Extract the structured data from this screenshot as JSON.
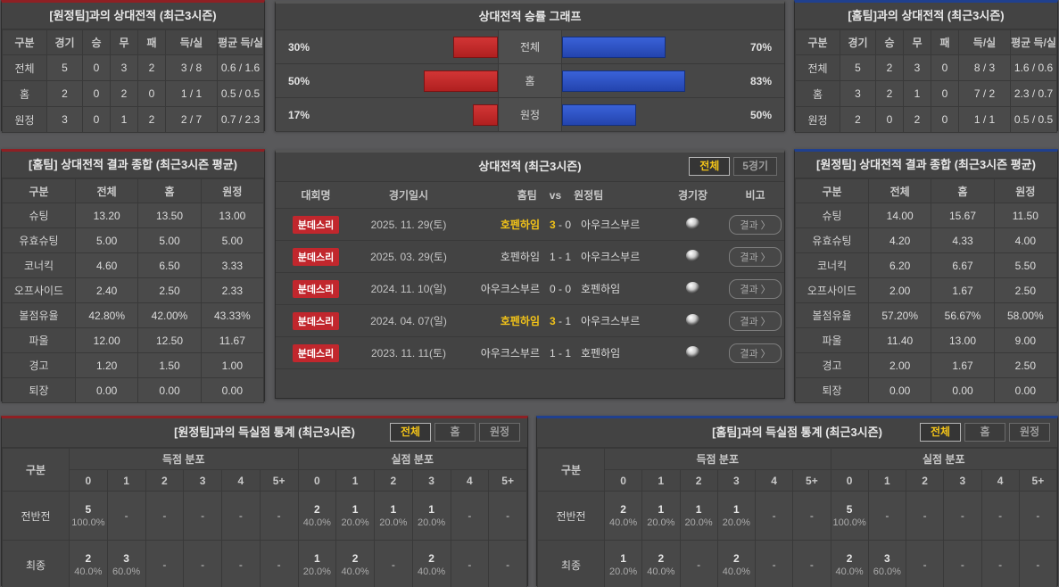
{
  "colors": {
    "red_bar": "#c1272d",
    "blue_bar": "#2b52c8",
    "yellow_highlight": "#f2c318",
    "red_accent": "#8e2024",
    "blue_accent": "#20408e"
  },
  "away_h2h": {
    "title": "[원정팀]과의 상대전적 (최근3시즌)",
    "headers": [
      "구분",
      "경기",
      "승",
      "무",
      "패",
      "득/실",
      "평균 득/실"
    ],
    "rows": [
      {
        "label": "전체",
        "values": [
          "5",
          "0",
          "3",
          "2",
          "3 / 8",
          "0.6 / 1.6"
        ]
      },
      {
        "label": "홈",
        "values": [
          "2",
          "0",
          "2",
          "0",
          "1 / 1",
          "0.5 / 0.5"
        ]
      },
      {
        "label": "원정",
        "values": [
          "3",
          "0",
          "1",
          "2",
          "2 / 7",
          "0.7 / 2.3"
        ]
      }
    ]
  },
  "home_h2h": {
    "title": "[홈팀]과의 상대전적 (최근3시즌)",
    "headers": [
      "구분",
      "경기",
      "승",
      "무",
      "패",
      "득/실",
      "평균 득/실"
    ],
    "rows": [
      {
        "label": "전체",
        "values": [
          "5",
          "2",
          "3",
          "0",
          "8 / 3",
          "1.6 / 0.6"
        ]
      },
      {
        "label": "홈",
        "values": [
          "3",
          "2",
          "1",
          "0",
          "7 / 2",
          "2.3 / 0.7"
        ]
      },
      {
        "label": "원정",
        "values": [
          "2",
          "0",
          "2",
          "0",
          "1 / 1",
          "0.5 / 0.5"
        ]
      }
    ]
  },
  "win_rate_chart": {
    "title": "상대전적 승률 그래프",
    "chart_data": {
      "type": "bar",
      "categories": [
        "전체",
        "홈",
        "원정"
      ],
      "series": [
        {
          "name": "away-red",
          "values": [
            30,
            50,
            17
          ]
        },
        {
          "name": "home-blue",
          "values": [
            70,
            83,
            50
          ]
        }
      ],
      "xlim": [
        0,
        100
      ],
      "unit": "%"
    },
    "rows": [
      {
        "label": "전체",
        "away_pct": "30%",
        "away_val": 30,
        "home_pct": "70%",
        "home_val": 70
      },
      {
        "label": "홈",
        "away_pct": "50%",
        "away_val": 50,
        "home_pct": "83%",
        "home_val": 83
      },
      {
        "label": "원정",
        "away_pct": "17%",
        "away_val": 17,
        "home_pct": "50%",
        "home_val": 50
      }
    ]
  },
  "home_summary": {
    "title": "[홈팀] 상대전적 결과 종합 (최근3시즌 평균)",
    "headers": [
      "구분",
      "전체",
      "홈",
      "원정"
    ],
    "rows": [
      {
        "label": "슈팅",
        "values": [
          "13.20",
          "13.50",
          "13.00"
        ]
      },
      {
        "label": "유효슈팅",
        "values": [
          "5.00",
          "5.00",
          "5.00"
        ]
      },
      {
        "label": "코너킥",
        "values": [
          "4.60",
          "6.50",
          "3.33"
        ]
      },
      {
        "label": "오프사이드",
        "values": [
          "2.40",
          "2.50",
          "2.33"
        ]
      },
      {
        "label": "볼점유율",
        "values": [
          "42.80%",
          "42.00%",
          "43.33%"
        ]
      },
      {
        "label": "파울",
        "values": [
          "12.00",
          "12.50",
          "11.67"
        ]
      },
      {
        "label": "경고",
        "values": [
          "1.20",
          "1.50",
          "1.00"
        ]
      },
      {
        "label": "퇴장",
        "values": [
          "0.00",
          "0.00",
          "0.00"
        ]
      }
    ]
  },
  "away_summary": {
    "title": "[원정팀] 상대전적 결과 종합 (최근3시즌 평균)",
    "headers": [
      "구분",
      "전체",
      "홈",
      "원정"
    ],
    "rows": [
      {
        "label": "슈팅",
        "values": [
          "14.00",
          "15.67",
          "11.50"
        ]
      },
      {
        "label": "유효슈팅",
        "values": [
          "4.20",
          "4.33",
          "4.00"
        ]
      },
      {
        "label": "코너킥",
        "values": [
          "6.20",
          "6.67",
          "5.50"
        ]
      },
      {
        "label": "오프사이드",
        "values": [
          "2.00",
          "1.67",
          "2.50"
        ]
      },
      {
        "label": "볼점유율",
        "values": [
          "57.20%",
          "56.67%",
          "58.00%"
        ]
      },
      {
        "label": "파울",
        "values": [
          "11.40",
          "13.00",
          "9.00"
        ]
      },
      {
        "label": "경고",
        "values": [
          "2.00",
          "1.67",
          "2.50"
        ]
      },
      {
        "label": "퇴장",
        "values": [
          "0.00",
          "0.00",
          "0.00"
        ]
      }
    ]
  },
  "match_list": {
    "title": "상대전적 (최근3시즌)",
    "tabs": [
      {
        "label": "전체",
        "active": true
      },
      {
        "label": "5경기",
        "active": false
      }
    ],
    "headers": {
      "league": "대회명",
      "date": "경기일시",
      "home": "홈팀",
      "vs": "vs",
      "away": "원정팀",
      "stadium": "경기장",
      "note": "비고"
    },
    "result_label": "결과 〉",
    "stadium_icon": "ball-icon",
    "rows": [
      {
        "league": "분데스리",
        "date": "2025. 11. 29(토)",
        "home": "호펜하임",
        "home_score": "3",
        "away_score": "0",
        "away": "아우크스부르",
        "winner": "home"
      },
      {
        "league": "분데스리",
        "date": "2025. 03. 29(토)",
        "home": "호펜하임",
        "home_score": "1",
        "away_score": "1",
        "away": "아우크스부르",
        "winner": "none"
      },
      {
        "league": "분데스리",
        "date": "2024. 11. 10(일)",
        "home": "아우크스부르",
        "home_score": "0",
        "away_score": "0",
        "away": "호펜하임",
        "winner": "none"
      },
      {
        "league": "분데스리",
        "date": "2024. 04. 07(일)",
        "home": "호펜하임",
        "home_score": "3",
        "away_score": "1",
        "away": "아우크스부르",
        "winner": "home"
      },
      {
        "league": "분데스리",
        "date": "2023. 11. 11(토)",
        "home": "아우크스부르",
        "home_score": "1",
        "away_score": "1",
        "away": "호펜하임",
        "winner": "none"
      }
    ]
  },
  "away_goals": {
    "title": "[원정팀]과의 득실점 통계 (최근3시즌)",
    "tabs": [
      {
        "label": "전체",
        "active": true
      },
      {
        "label": "홈",
        "active": false
      },
      {
        "label": "원정",
        "active": false
      }
    ],
    "col_header": "구분",
    "group_headers": [
      "득점 분포",
      "실점 분포"
    ],
    "bins": [
      "0",
      "1",
      "2",
      "3",
      "4",
      "5+"
    ],
    "rows": [
      {
        "label": "전반전",
        "scored": [
          {
            "n": "5",
            "p": "100.0%"
          },
          "-",
          "-",
          "-",
          "-",
          "-"
        ],
        "conceded": [
          {
            "n": "2",
            "p": "40.0%"
          },
          {
            "n": "1",
            "p": "20.0%"
          },
          {
            "n": "1",
            "p": "20.0%"
          },
          {
            "n": "1",
            "p": "20.0%"
          },
          "-",
          "-"
        ]
      },
      {
        "label": "최종",
        "scored": [
          {
            "n": "2",
            "p": "40.0%"
          },
          {
            "n": "3",
            "p": "60.0%"
          },
          "-",
          "-",
          "-",
          "-"
        ],
        "conceded": [
          {
            "n": "1",
            "p": "20.0%"
          },
          {
            "n": "2",
            "p": "40.0%"
          },
          "-",
          {
            "n": "2",
            "p": "40.0%"
          },
          "-",
          "-"
        ]
      }
    ]
  },
  "home_goals": {
    "title": "[홈팀]과의 득실점 통계 (최근3시즌)",
    "tabs": [
      {
        "label": "전체",
        "active": true
      },
      {
        "label": "홈",
        "active": false
      },
      {
        "label": "원정",
        "active": false
      }
    ],
    "col_header": "구분",
    "group_headers": [
      "득점 분포",
      "실점 분포"
    ],
    "bins": [
      "0",
      "1",
      "2",
      "3",
      "4",
      "5+"
    ],
    "rows": [
      {
        "label": "전반전",
        "scored": [
          {
            "n": "2",
            "p": "40.0%"
          },
          {
            "n": "1",
            "p": "20.0%"
          },
          {
            "n": "1",
            "p": "20.0%"
          },
          {
            "n": "1",
            "p": "20.0%"
          },
          "-",
          "-"
        ],
        "conceded": [
          {
            "n": "5",
            "p": "100.0%"
          },
          "-",
          "-",
          "-",
          "-",
          "-"
        ]
      },
      {
        "label": "최종",
        "scored": [
          {
            "n": "1",
            "p": "20.0%"
          },
          {
            "n": "2",
            "p": "40.0%"
          },
          "-",
          {
            "n": "2",
            "p": "40.0%"
          },
          "-",
          "-"
        ],
        "conceded": [
          {
            "n": "2",
            "p": "40.0%"
          },
          {
            "n": "3",
            "p": "60.0%"
          },
          "-",
          "-",
          "-",
          "-"
        ]
      }
    ]
  }
}
